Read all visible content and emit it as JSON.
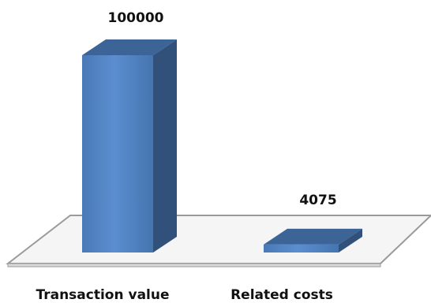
{
  "chart_data": {
    "type": "bar",
    "categories": [
      "Transaction value",
      "Related costs"
    ],
    "values": [
      100000,
      4075
    ],
    "data_labels": [
      "100000",
      "4075"
    ],
    "ylim": [
      0,
      100000
    ],
    "grid": false,
    "legend": "none",
    "style": "3d-column",
    "colors": {
      "bar_front": "#4f81bd",
      "bar_side": "#31507a",
      "bar_top": "#3d6496",
      "floor_fill": "#f7f7f7",
      "floor_stroke": "#9a9a9a"
    }
  }
}
